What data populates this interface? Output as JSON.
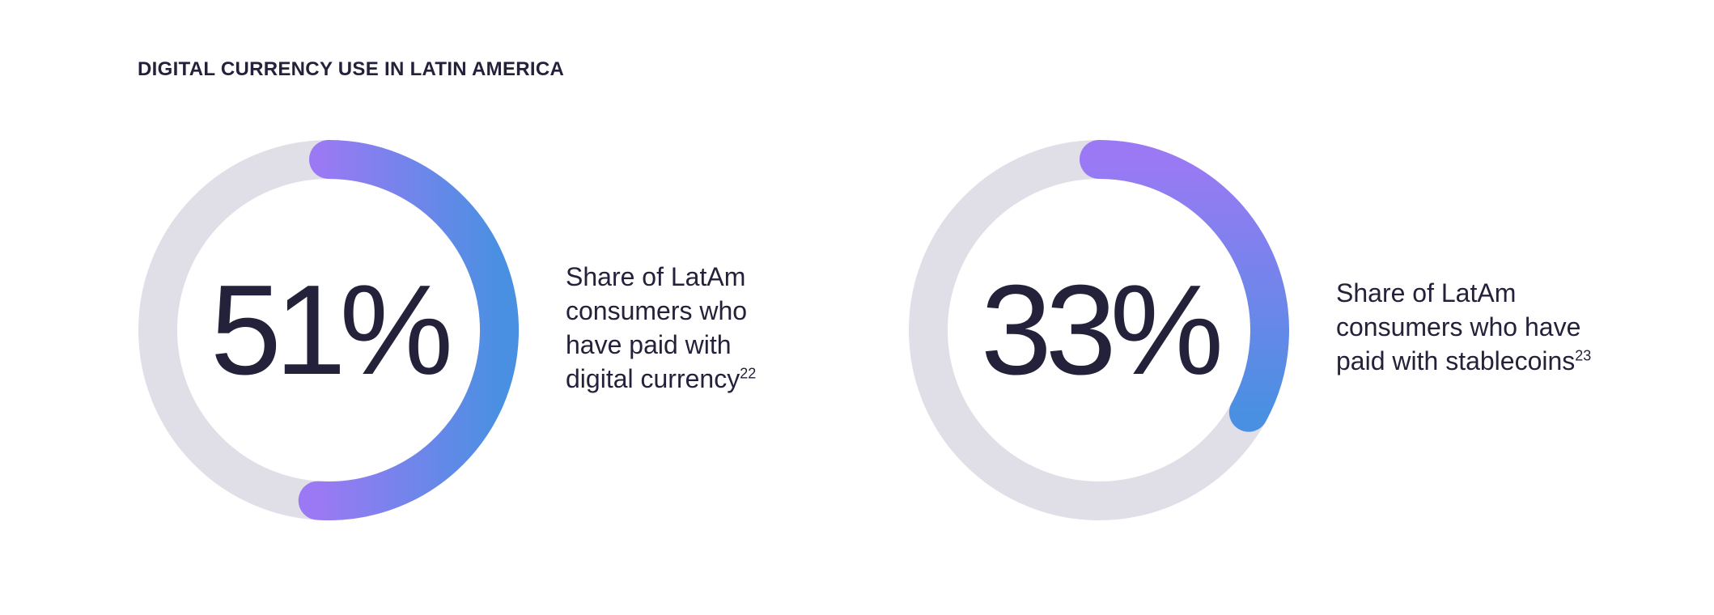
{
  "title": "DIGITAL CURRENCY USE IN LATIN AMERICA",
  "colors": {
    "track": "#e0dfe8",
    "gradient_start": "#9b79f4",
    "gradient_end": "#4a90e2",
    "text": "#24223a"
  },
  "chart_data": [
    {
      "type": "pie",
      "subtype": "donut",
      "title": "DIGITAL CURRENCY USE IN LATIN AMERICA",
      "value": 51,
      "max": 100,
      "label": "51%",
      "caption_lines": [
        "Share of LatAm",
        "consumers who",
        "have paid with",
        "digital currency"
      ],
      "footnote": "22"
    },
    {
      "type": "pie",
      "subtype": "donut",
      "title": "DIGITAL CURRENCY USE IN LATIN AMERICA",
      "value": 33,
      "max": 100,
      "label": "33%",
      "caption_lines": [
        "Share of LatAm",
        "consumers who have",
        "paid with stablecoins"
      ],
      "footnote": "23"
    }
  ]
}
